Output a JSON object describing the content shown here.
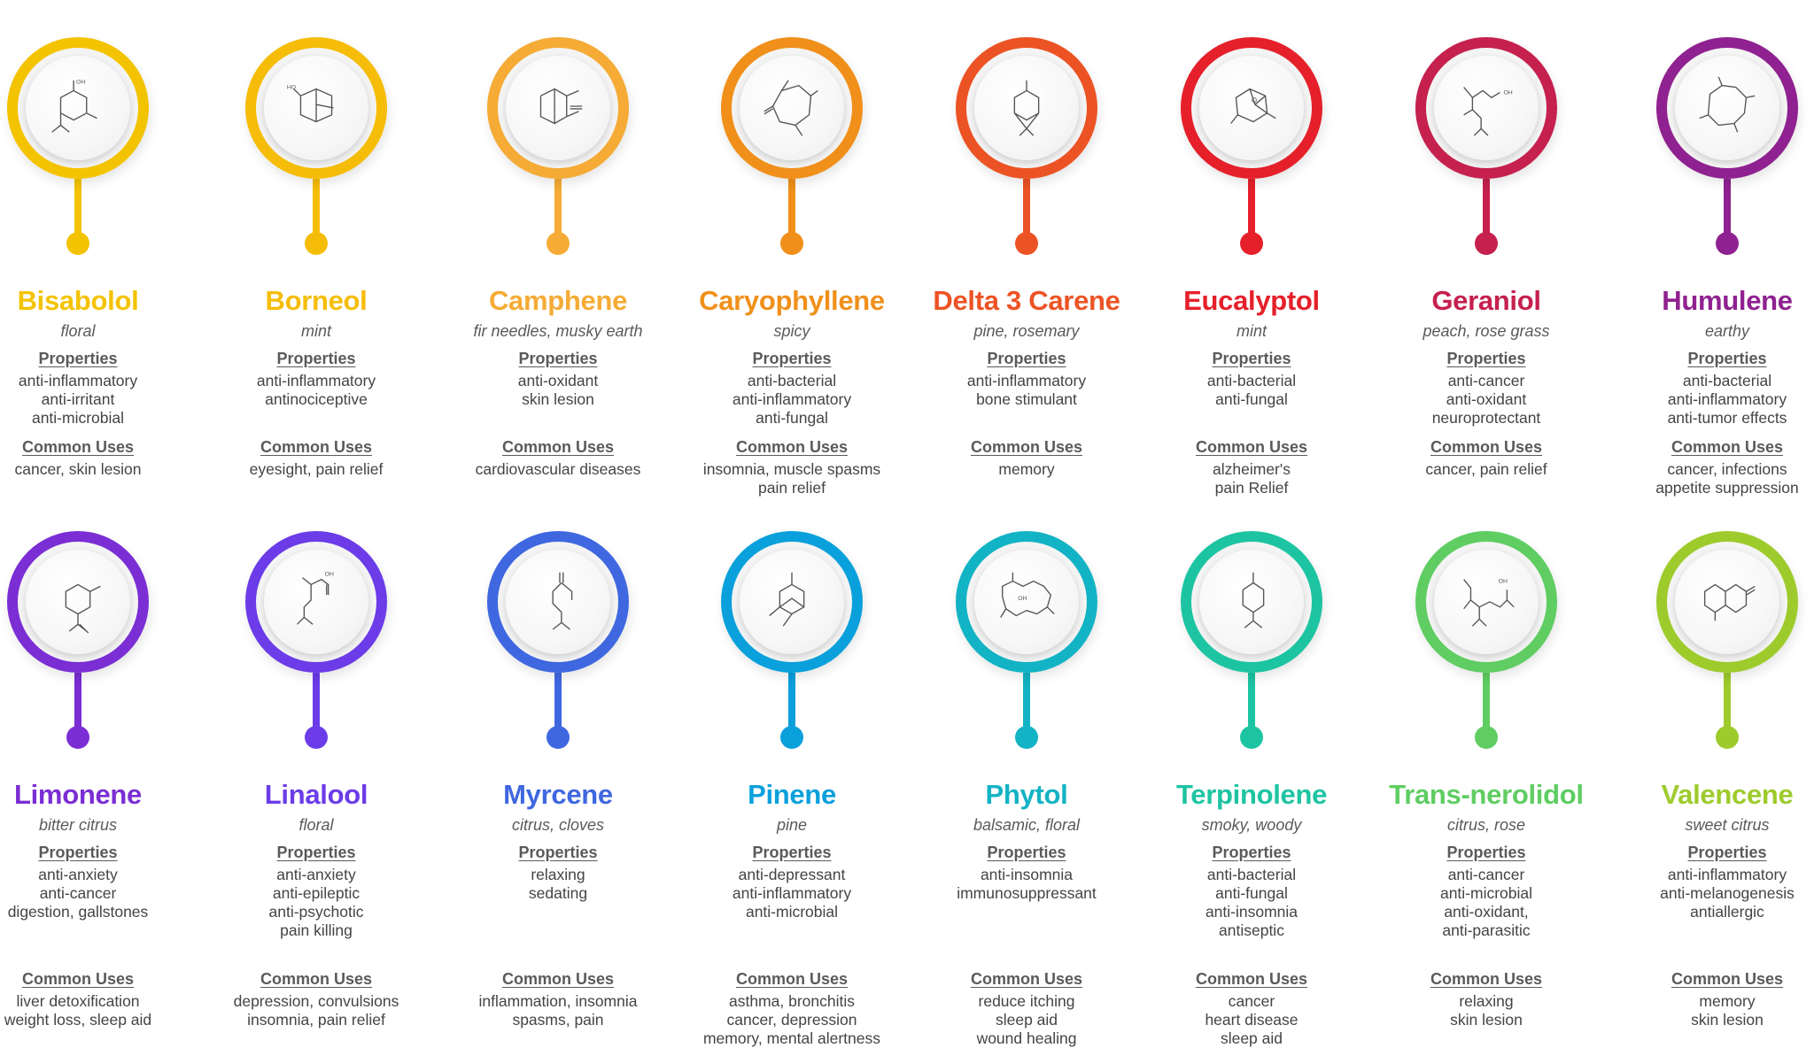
{
  "terpenes": [
    {
      "name": "Bisabolol",
      "aroma": "floral",
      "color": "#f4c300",
      "properties_label": "Properties",
      "properties": [
        "anti-inflammatory",
        "anti-irritant",
        "anti-microbial"
      ],
      "uses_label": "Common Uses",
      "uses": [
        "cancer, skin lesion"
      ],
      "molecule_icon": "bisabolol-structure"
    },
    {
      "name": "Borneol",
      "aroma": "mint",
      "color": "#f5bd07",
      "properties_label": "Properties",
      "properties": [
        "anti-inflammatory",
        "antinociceptive"
      ],
      "uses_label": "Common Uses",
      "uses": [
        "eyesight, pain relief"
      ],
      "molecule_icon": "borneol-structure"
    },
    {
      "name": "Camphene",
      "aroma": "fir needles, musky earth",
      "color": "#f5ab35",
      "properties_label": "Properties",
      "properties": [
        "anti-oxidant",
        "skin lesion"
      ],
      "uses_label": "Common Uses",
      "uses": [
        "cardiovascular diseases"
      ],
      "molecule_icon": "camphene-structure"
    },
    {
      "name": "Caryophyllene",
      "aroma": "spicy",
      "color": "#f0901a",
      "properties_label": "Properties",
      "properties": [
        "anti-bacterial",
        "anti-inflammatory",
        "anti-fungal"
      ],
      "uses_label": "Common Uses",
      "uses": [
        "insomnia, muscle spasms",
        "pain relief"
      ],
      "molecule_icon": "caryophyllene-structure"
    },
    {
      "name": "Delta 3 Carene",
      "aroma": "pine, rosemary",
      "color": "#ec5324",
      "properties_label": "Properties",
      "properties": [
        "anti-inflammatory",
        "bone stimulant"
      ],
      "uses_label": "Common Uses",
      "uses": [
        "memory"
      ],
      "molecule_icon": "carene-structure"
    },
    {
      "name": "Eucalyptol",
      "aroma": "mint",
      "color": "#e5202a",
      "properties_label": "Properties",
      "properties": [
        "anti-bacterial",
        "anti-fungal"
      ],
      "uses_label": "Common Uses",
      "uses": [
        "alzheimer's",
        "pain Relief"
      ],
      "molecule_icon": "eucalyptol-structure"
    },
    {
      "name": "Geraniol",
      "aroma": "peach, rose grass",
      "color": "#c5204e",
      "properties_label": "Properties",
      "properties": [
        "anti-cancer",
        "anti-oxidant",
        "neuroprotectant"
      ],
      "uses_label": "Common Uses",
      "uses": [
        "cancer, pain relief"
      ],
      "molecule_icon": "geraniol-structure"
    },
    {
      "name": "Humulene",
      "aroma": "earthy",
      "color": "#8f2190",
      "properties_label": "Properties",
      "properties": [
        "anti-bacterial",
        "anti-inflammatory",
        "anti-tumor effects"
      ],
      "uses_label": "Common Uses",
      "uses": [
        "cancer, infections",
        "appetite suppression"
      ],
      "molecule_icon": "humulene-structure"
    },
    {
      "name": "Limonene",
      "aroma": "bitter citrus",
      "color": "#7a2ed4",
      "properties_label": "Properties",
      "properties": [
        "anti-anxiety",
        "anti-cancer",
        "digestion, gallstones"
      ],
      "uses_label": "Common Uses",
      "uses": [
        "liver detoxification",
        "weight loss, sleep aid"
      ],
      "molecule_icon": "limonene-structure"
    },
    {
      "name": "Linalool",
      "aroma": "floral",
      "color": "#6b3ce8",
      "properties_label": "Properties",
      "properties": [
        "anti-anxiety",
        "anti-epileptic",
        "anti-psychotic",
        "pain killing"
      ],
      "uses_label": "Common Uses",
      "uses": [
        "depression, convulsions",
        "insomnia, pain relief"
      ],
      "molecule_icon": "linalool-structure"
    },
    {
      "name": "Myrcene",
      "aroma": "citrus, cloves",
      "color": "#3f67e0",
      "properties_label": "Properties",
      "properties": [
        "relaxing",
        "sedating"
      ],
      "uses_label": "Common Uses",
      "uses": [
        "inflammation,  insomnia",
        "spasms, pain"
      ],
      "molecule_icon": "myrcene-structure"
    },
    {
      "name": "Pinene",
      "aroma": "pine",
      "color": "#0aa0dc",
      "properties_label": "Properties",
      "properties": [
        "anti-depressant",
        "anti-inflammatory",
        "anti-microbial"
      ],
      "uses_label": "Common Uses",
      "uses": [
        "asthma, bronchitis",
        "cancer, depression",
        "memory, mental alertness"
      ],
      "molecule_icon": "pinene-structure"
    },
    {
      "name": "Phytol",
      "aroma": "balsamic, floral",
      "color": "#12b3c4",
      "properties_label": "Properties",
      "properties": [
        "anti-insomnia",
        "immunosuppressant"
      ],
      "uses_label": "Common Uses",
      "uses": [
        "reduce itching",
        "sleep aid",
        "wound healing"
      ],
      "molecule_icon": "phytol-structure"
    },
    {
      "name": "Terpinolene",
      "aroma": "smoky, woody",
      "color": "#1dc4a2",
      "properties_label": "Properties",
      "properties": [
        "anti-bacterial",
        "anti-fungal",
        "anti-insomnia",
        "antiseptic"
      ],
      "uses_label": "Common Uses",
      "uses": [
        "cancer",
        "heart disease",
        "sleep aid"
      ],
      "molecule_icon": "terpinolene-structure"
    },
    {
      "name": "Trans-nerolidol",
      "aroma": "citrus, rose",
      "color": "#5fcd62",
      "properties_label": "Properties",
      "properties": [
        "anti-cancer",
        "anti-microbial",
        "anti-oxidant,",
        "anti-parasitic"
      ],
      "uses_label": "Common Uses",
      "uses": [
        "relaxing",
        "skin lesion"
      ],
      "molecule_icon": "nerolidol-structure"
    },
    {
      "name": "Valencene",
      "aroma": "sweet citrus",
      "color": "#9ecb2c",
      "properties_label": "Properties",
      "properties": [
        "anti-inflammatory",
        "anti-melanogenesis",
        "antiallergic"
      ],
      "uses_label": "Common Uses",
      "uses": [
        "memory",
        "skin lesion"
      ],
      "molecule_icon": "valencene-structure"
    }
  ]
}
